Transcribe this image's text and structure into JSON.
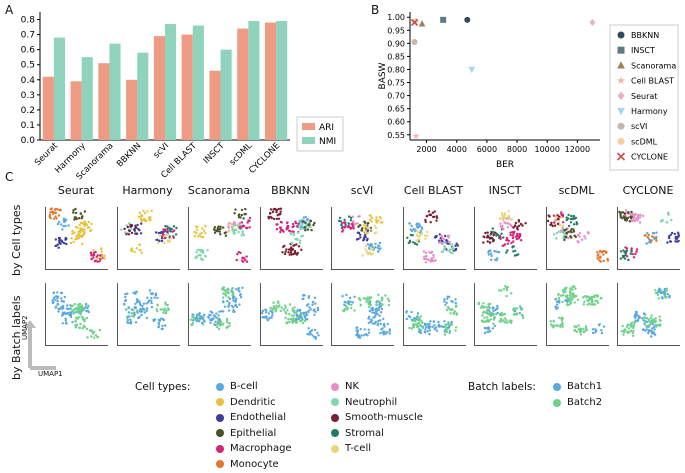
{
  "panels": {
    "a": "A",
    "b": "B",
    "c": "C"
  },
  "colors": {
    "ari": "#ef9b83",
    "nmi": "#8fd3bd"
  },
  "chart_data": [
    {
      "type": "bar",
      "panel": "A",
      "categories": [
        "Seurat",
        "Harmony",
        "Scanorama",
        "BBKNN",
        "scVI",
        "Cell BLAST",
        "INSCT",
        "scDML",
        "CYCLONE"
      ],
      "series": [
        {
          "name": "ARI",
          "values": [
            0.42,
            0.39,
            0.51,
            0.4,
            0.69,
            0.7,
            0.46,
            0.74,
            0.78
          ]
        },
        {
          "name": "NMI",
          "values": [
            0.68,
            0.55,
            0.64,
            0.58,
            0.77,
            0.76,
            0.6,
            0.79,
            0.79
          ]
        }
      ],
      "yticks": [
        "0.0",
        "0.1",
        "0.2",
        "0.3",
        "0.4",
        "0.5",
        "0.6",
        "0.7",
        "0.8"
      ],
      "ylim": [
        0,
        0.85
      ],
      "legend": [
        "ARI",
        "NMI"
      ],
      "legend_position": "lower-right"
    },
    {
      "type": "scatter",
      "panel": "B",
      "xlabel": "BER",
      "ylabel": "BASW",
      "xticks": [
        "2000",
        "4000",
        "6000",
        "8000",
        "10000",
        "12000"
      ],
      "yticks": [
        "0.55",
        "0.60",
        "0.65",
        "0.70",
        "0.75",
        "0.80",
        "0.85",
        "0.90",
        "0.95",
        "1.00"
      ],
      "xlim": [
        900,
        13500
      ],
      "ylim": [
        0.53,
        1.02
      ],
      "points": [
        {
          "name": "BBKNN",
          "x": 4700,
          "y": 0.99,
          "color": "#2e4a5c",
          "marker": "circle"
        },
        {
          "name": "INSCT",
          "x": 3100,
          "y": 0.99,
          "color": "#5e7a86",
          "marker": "square"
        },
        {
          "name": "Scanorama",
          "x": 1700,
          "y": 0.975,
          "color": "#a08055",
          "marker": "triangle-up"
        },
        {
          "name": "Cell BLAST",
          "x": 1300,
          "y": 0.545,
          "color": "#f2b6a6",
          "marker": "star"
        },
        {
          "name": "Seurat",
          "x": 13000,
          "y": 0.98,
          "color": "#e9b1bd",
          "marker": "diamond"
        },
        {
          "name": "Harmony",
          "x": 5000,
          "y": 0.8,
          "color": "#a6d4ec",
          "marker": "triangle-down"
        },
        {
          "name": "scVI",
          "x": 1200,
          "y": 0.905,
          "color": "#c7b7ab",
          "marker": "circle"
        },
        {
          "name": "scDML",
          "x": 1250,
          "y": 0.985,
          "color": "#f2d1a8",
          "marker": "circle"
        },
        {
          "name": "CYCLONE",
          "x": 1200,
          "y": 0.98,
          "color": "#c84a45",
          "marker": "x"
        }
      ]
    }
  ],
  "section_c": {
    "methods": [
      "Seurat",
      "Harmony",
      "Scanorama",
      "BBKNN",
      "scVI",
      "Cell BLAST",
      "INSCT",
      "scDML",
      "CYCLONE"
    ],
    "row1_label": "by Cell types",
    "row2_label": "by Batch labels",
    "umap1": "UMAP1",
    "umap2": "UMAP2",
    "cell_types_title": "Cell types:",
    "cell_types": [
      {
        "name": "B-cell",
        "color": "#5aa8e0"
      },
      {
        "name": "Dendritic",
        "color": "#e8c23c"
      },
      {
        "name": "Endothelial",
        "color": "#3d3d9a"
      },
      {
        "name": "Epithelial",
        "color": "#4d5026"
      },
      {
        "name": "Macrophage",
        "color": "#d6237a"
      },
      {
        "name": "Monocyte",
        "color": "#e2762a"
      },
      {
        "name": "NK",
        "color": "#e48ec6"
      },
      {
        "name": "Neutrophil",
        "color": "#80d6ad"
      },
      {
        "name": "Smooth-muscle",
        "color": "#7a1f31"
      },
      {
        "name": "Stromal",
        "color": "#227a68"
      },
      {
        "name": "T-cell",
        "color": "#e8d57a"
      }
    ],
    "batch_title": "Batch labels:",
    "batches": [
      {
        "name": "Batch1",
        "color": "#5aa8e0"
      },
      {
        "name": "Batch2",
        "color": "#6fd08a"
      }
    ]
  }
}
